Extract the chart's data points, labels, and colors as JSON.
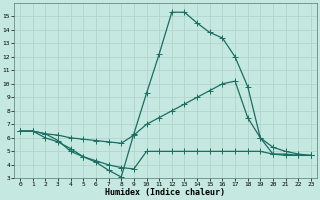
{
  "xlabel": "Humidex (Indice chaleur)",
  "bg_color": "#c5e8e0",
  "grid_color": "#afd0c8",
  "line_color": "#1a6e62",
  "xlim": [
    -0.5,
    23.5
  ],
  "ylim": [
    3,
    16
  ],
  "xticks": [
    0,
    1,
    2,
    3,
    4,
    5,
    6,
    7,
    8,
    9,
    10,
    11,
    12,
    13,
    14,
    15,
    16,
    17,
    18,
    19,
    20,
    21,
    22,
    23
  ],
  "yticks": [
    3,
    4,
    5,
    6,
    7,
    8,
    9,
    10,
    11,
    12,
    13,
    14,
    15
  ],
  "line1_x": [
    0,
    1,
    2,
    3,
    4,
    5,
    6,
    7,
    8,
    9,
    10,
    11,
    12,
    13,
    14,
    15,
    16,
    17,
    18,
    19,
    20,
    21,
    22,
    23
  ],
  "line1_y": [
    6.5,
    6.5,
    6.0,
    5.7,
    5.2,
    4.6,
    4.2,
    3.6,
    3.1,
    6.3,
    9.3,
    12.2,
    15.3,
    15.3,
    14.5,
    13.8,
    13.4,
    12.0,
    9.8,
    6.0,
    4.8,
    4.7,
    4.7,
    4.7
  ],
  "line2_x": [
    0,
    1,
    2,
    3,
    4,
    5,
    6,
    7,
    8,
    9,
    10,
    11,
    12,
    13,
    14,
    15,
    16,
    17,
    18,
    19,
    20,
    21,
    22,
    23
  ],
  "line2_y": [
    6.5,
    6.5,
    6.3,
    6.2,
    6.0,
    5.9,
    5.8,
    5.7,
    5.6,
    6.2,
    7.0,
    7.5,
    8.0,
    8.5,
    9.0,
    9.5,
    10.0,
    10.2,
    7.5,
    6.0,
    5.3,
    5.0,
    4.8,
    4.7
  ],
  "line3_x": [
    0,
    1,
    2,
    3,
    4,
    5,
    6,
    7,
    8,
    9,
    10,
    11,
    12,
    13,
    14,
    15,
    16,
    17,
    18,
    19,
    20,
    21,
    22,
    23
  ],
  "line3_y": [
    6.5,
    6.5,
    6.3,
    5.8,
    5.0,
    4.6,
    4.3,
    4.0,
    3.8,
    3.7,
    5.0,
    5.0,
    5.0,
    5.0,
    5.0,
    5.0,
    5.0,
    5.0,
    5.0,
    5.0,
    4.8,
    4.8,
    4.7,
    4.7
  ]
}
